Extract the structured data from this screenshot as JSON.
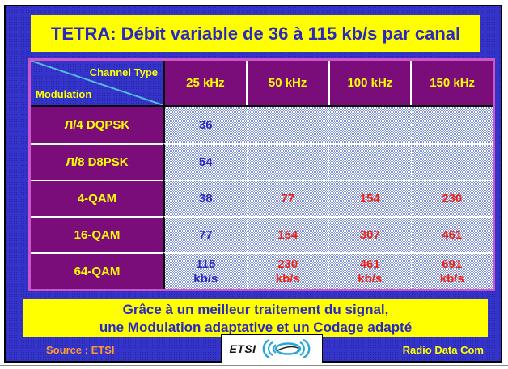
{
  "slide": {
    "title": "TETRA: Débit variable de 36 à 115 kb/s par canal",
    "banner": {
      "line1": "Grâce à un meilleur traitement du signal,",
      "line2": "une Modulation adaptative et un Codage adapté"
    },
    "footer": {
      "source": "Source : ETSI",
      "logo_text": "ETSI",
      "brand": "Radio Data Com"
    }
  },
  "table": {
    "corner": {
      "top_label": "Channel Type",
      "bottom_label": "Modulation"
    },
    "columns": [
      "25 kHz",
      "50 kHz",
      "100 kHz",
      "150 kHz"
    ],
    "rows": [
      {
        "modulation": "Л/4 DQPSK",
        "values": [
          "36",
          "",
          "",
          ""
        ]
      },
      {
        "modulation": "Л/8 D8PSK",
        "values": [
          "54",
          "",
          "",
          ""
        ]
      },
      {
        "modulation": "4-QAM",
        "values": [
          "38",
          "77",
          "154",
          "230"
        ]
      },
      {
        "modulation": "16-QAM",
        "values": [
          "77",
          "154",
          "307",
          "461"
        ]
      },
      {
        "modulation": "64-QAM",
        "values": [
          "115\nkb/s",
          "230\nkb/s",
          "461\nkb/s",
          "691\nkb/s"
        ]
      }
    ],
    "value_colors": {
      "first_column": "#2a2ab8",
      "other_columns": "#ee2211"
    }
  },
  "colors": {
    "slide_background": "#3434cb",
    "highlight_yellow": "#ffff00",
    "header_purple": "#7a0d7a",
    "table_border_pink": "#cc55cc",
    "title_navy": "#2929c0",
    "source_orange": "#ff9933",
    "logo_blue": "#2aa7d8"
  }
}
